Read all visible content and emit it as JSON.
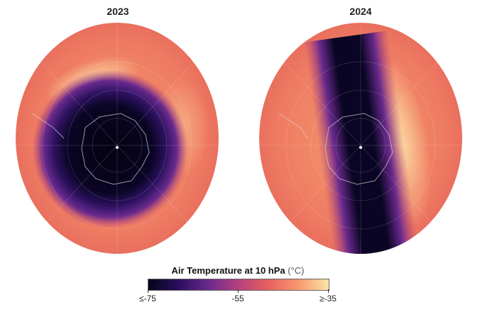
{
  "panels": [
    {
      "year": "2023"
    },
    {
      "year": "2024"
    }
  ],
  "legend": {
    "title": "Air Temperature at 10 hPa",
    "unit": "(°C)",
    "min_label": "≤-75",
    "mid_label": "-55",
    "max_label": "≥-35",
    "colors": [
      "#050318",
      "#2a0f5e",
      "#6a2a8e",
      "#b6407e",
      "#e7615f",
      "#f79a6e",
      "#fde3a8"
    ]
  }
}
